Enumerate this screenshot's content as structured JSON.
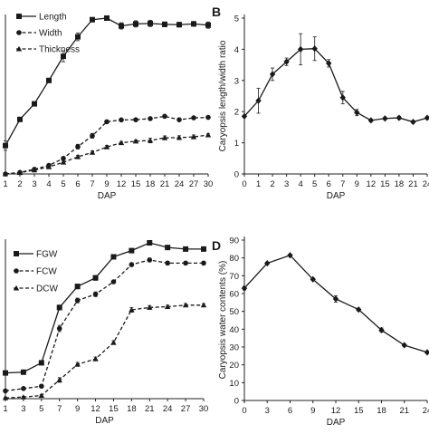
{
  "chart_data": [
    {
      "id": "A",
      "panel_label": "",
      "type": "line",
      "xlabel": "DAP",
      "ylabel": "",
      "categories": [
        "1",
        "2",
        "3",
        "4",
        "5",
        "6",
        "7",
        "9",
        "12",
        "15",
        "18",
        "21",
        "24",
        "27",
        "30"
      ],
      "ylim": [
        0,
        1
      ],
      "legend_position": "top-left",
      "series": [
        {
          "name": "Length",
          "marker": "square",
          "dash": false,
          "values": [
            0.182,
            0.35,
            0.45,
            0.6,
            0.755,
            0.88,
            0.99,
            1.0,
            0.95,
            0.963,
            0.966,
            0.96,
            0.958,
            0.963,
            0.955
          ],
          "errors": [
            0.03,
            0.01,
            0.01,
            0.01,
            0.035,
            0.025,
            0.01,
            0.01,
            0.02,
            0.02,
            0.02,
            0.015,
            0.015,
            0.015,
            0.02
          ]
        },
        {
          "name": "Width",
          "marker": "circle",
          "dash": true,
          "values": [
            0.0,
            0.01,
            0.03,
            0.055,
            0.1,
            0.175,
            0.245,
            0.335,
            0.347,
            0.348,
            0.355,
            0.37,
            0.348,
            0.36,
            0.363
          ],
          "errors": [
            0.005,
            0.005,
            0.005,
            0.008,
            0.01,
            0.015,
            0.015,
            0.01,
            0.008,
            0.008,
            0.008,
            0.006,
            0.006,
            0.006,
            0.006
          ]
        },
        {
          "name": "Thickness",
          "marker": "triangle",
          "dash": true,
          "values": [
            0.0,
            0.008,
            0.025,
            0.045,
            0.075,
            0.11,
            0.138,
            0.173,
            0.2,
            0.21,
            0.215,
            0.232,
            0.233,
            0.238,
            0.25
          ],
          "errors": [
            0.004,
            0.004,
            0.005,
            0.006,
            0.008,
            0.01,
            0.01,
            0.01,
            0.008,
            0.008,
            0.015,
            0.012,
            0.012,
            0.012,
            0.008
          ]
        }
      ]
    },
    {
      "id": "B",
      "panel_label": "B",
      "type": "line",
      "xlabel": "DAP",
      "ylabel": "Caryopsis length/width  ratio",
      "categories": [
        "0",
        "1",
        "2",
        "3",
        "4",
        "5",
        "6",
        "7",
        "9",
        "12",
        "15",
        "18",
        "21",
        "24"
      ],
      "ylim": [
        0,
        5
      ],
      "yticks": [
        0,
        1,
        2,
        3,
        4,
        5
      ],
      "series": [
        {
          "name": "",
          "marker": "diamond",
          "dash": false,
          "values": [
            1.85,
            2.35,
            3.2,
            3.6,
            4.0,
            4.02,
            3.55,
            2.45,
            1.97,
            1.72,
            1.78,
            1.8,
            1.67,
            1.8
          ],
          "errors": [
            0.0,
            0.4,
            0.2,
            0.12,
            0.5,
            0.38,
            0.12,
            0.2,
            0.1,
            0.04,
            0.04,
            0.05,
            0.04,
            0.04
          ]
        }
      ]
    },
    {
      "id": "C",
      "panel_label": "",
      "type": "line",
      "xlabel": "DAP",
      "ylabel": "",
      "categories": [
        "1",
        "3",
        "5",
        "7",
        "9",
        "12",
        "15",
        "18",
        "21",
        "24",
        "27",
        "30"
      ],
      "ylim": [
        0,
        1
      ],
      "legend_position": "top-left",
      "series": [
        {
          "name": "FGW",
          "marker": "square",
          "dash": false,
          "values": [
            0.165,
            0.17,
            0.23,
            0.585,
            0.72,
            0.775,
            0.91,
            0.95,
            1.0,
            0.97,
            0.96,
            0.96
          ],
          "errors": [
            0.01,
            0.01,
            0.012,
            0.015,
            0.015,
            0.015,
            0.012,
            0.012,
            0.015,
            0.01,
            0.01,
            0.01
          ]
        },
        {
          "name": "FCW",
          "marker": "circle",
          "dash": true,
          "values": [
            0.05,
            0.065,
            0.08,
            0.45,
            0.63,
            0.67,
            0.75,
            0.86,
            0.89,
            0.87,
            0.87,
            0.87
          ],
          "errors": [
            0.008,
            0.008,
            0.01,
            0.02,
            0.015,
            0.015,
            0.01,
            0.012,
            0.012,
            0.01,
            0.01,
            0.01
          ]
        },
        {
          "name": "DCW",
          "marker": "triangle",
          "dash": true,
          "values": [
            0.005,
            0.01,
            0.02,
            0.12,
            0.22,
            0.255,
            0.36,
            0.57,
            0.585,
            0.59,
            0.6,
            0.6
          ],
          "errors": [
            0.005,
            0.005,
            0.006,
            0.015,
            0.012,
            0.012,
            0.012,
            0.015,
            0.012,
            0.01,
            0.01,
            0.01
          ]
        }
      ]
    },
    {
      "id": "D",
      "panel_label": "D",
      "type": "line",
      "xlabel": "DAP",
      "ylabel": "Caryopsis water contents (%)",
      "categories": [
        "0",
        "3",
        "6",
        "9",
        "12",
        "15",
        "18",
        "21",
        "24"
      ],
      "ylim": [
        0,
        90
      ],
      "yticks": [
        0,
        10,
        20,
        30,
        40,
        50,
        60,
        70,
        80,
        90
      ],
      "series": [
        {
          "name": "",
          "marker": "diamond",
          "dash": false,
          "values": [
            63,
            77,
            81.5,
            68,
            57,
            51,
            39.5,
            31,
            27
          ],
          "errors": [
            1.0,
            0.6,
            0.6,
            0.6,
            1.8,
            0.8,
            1.2,
            0.6,
            0.5
          ]
        }
      ]
    }
  ]
}
